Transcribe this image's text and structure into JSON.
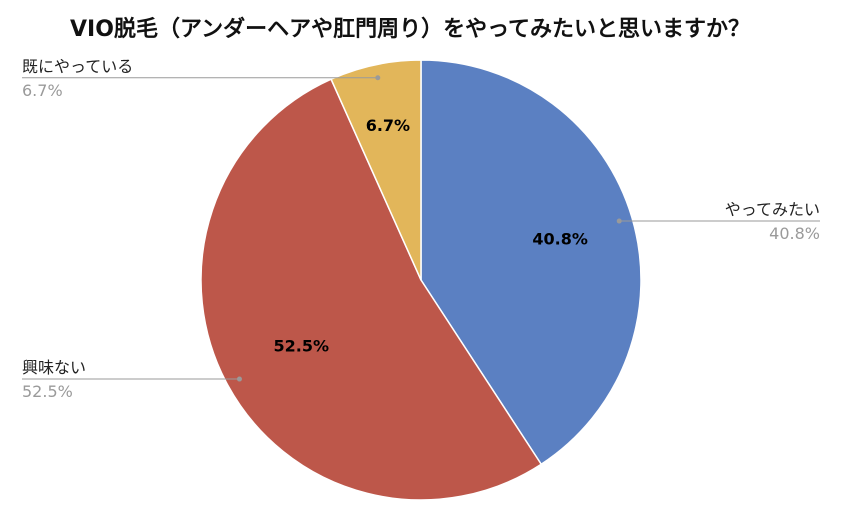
{
  "chart_data": {
    "type": "pie",
    "title": "VIO脱毛（アンダーヘアや肛門周り）をやってみたいと思いますか？",
    "categories": [
      "やってみたい",
      "興味ない",
      "既にやっている"
    ],
    "values": [
      40.8,
      52.5,
      6.7
    ],
    "value_labels": [
      "40.8%",
      "52.5%",
      "6.7%"
    ],
    "colors": [
      "#5b80c2",
      "#bd574a",
      "#e2b65a"
    ],
    "start": "12 o'clock",
    "direction": "clockwise",
    "legend": "outside labels with leader lines"
  }
}
